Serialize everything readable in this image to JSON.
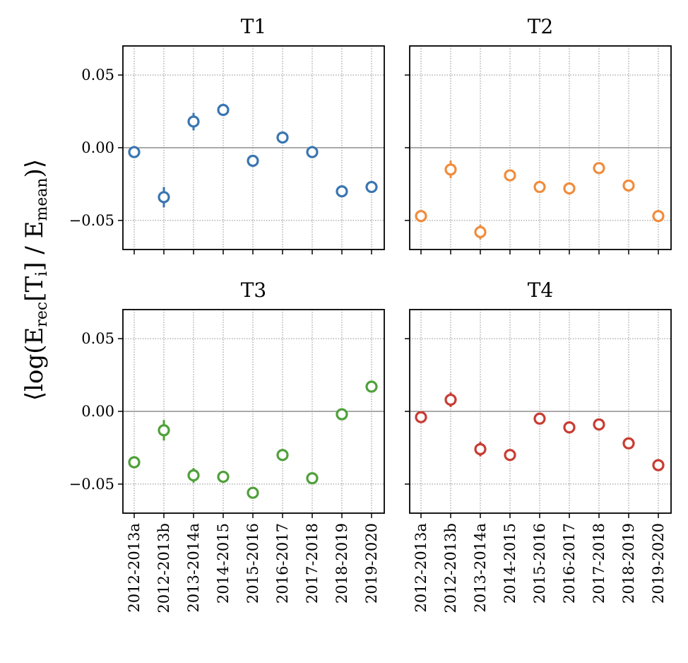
{
  "chart_data": {
    "type": "scatter",
    "ylabel": {
      "prefix": "⟨log(E",
      "sub1": "rec",
      "mid1": "[T",
      "sub2": "i",
      "mid2": "] / E",
      "sub3": "mean",
      "suffix": ")⟩"
    },
    "categories": [
      "2012-2013a",
      "2012-2013b",
      "2013-2014a",
      "2014-2015",
      "2015-2016",
      "2016-2017",
      "2017-2018",
      "2018-2019",
      "2019-2020"
    ],
    "ylim": [
      -0.07,
      0.07
    ],
    "yticks": [
      -0.05,
      0.0,
      0.05
    ],
    "ytick_labels": [
      "−0.05",
      "0.00",
      "0.05"
    ],
    "grid": true,
    "reference_line": 0.0,
    "panels": [
      {
        "title": "T1",
        "color": "#3a75b0",
        "values": [
          -0.003,
          -0.034,
          0.018,
          0.026,
          -0.009,
          0.007,
          -0.003,
          -0.03,
          -0.027
        ],
        "errors": [
          0.003,
          0.007,
          0.006,
          0.003,
          0.003,
          0.003,
          0.003,
          0.003,
          0.004
        ]
      },
      {
        "title": "T2",
        "color": "#f08c3c",
        "values": [
          -0.047,
          -0.015,
          -0.058,
          -0.019,
          -0.027,
          -0.028,
          -0.014,
          -0.026,
          -0.047
        ],
        "errors": [
          0.003,
          0.006,
          0.005,
          0.003,
          0.003,
          0.003,
          0.003,
          0.003,
          0.003
        ]
      },
      {
        "title": "T3",
        "color": "#4fa03a",
        "values": [
          -0.035,
          -0.013,
          -0.044,
          -0.045,
          -0.056,
          -0.03,
          -0.046,
          -0.002,
          0.017
        ],
        "errors": [
          0.003,
          0.007,
          0.005,
          0.003,
          0.003,
          0.003,
          0.003,
          0.003,
          0.003
        ]
      },
      {
        "title": "T4",
        "color": "#c83c32",
        "values": [
          -0.004,
          0.008,
          -0.026,
          -0.03,
          -0.005,
          -0.011,
          -0.009,
          -0.022,
          -0.037
        ],
        "errors": [
          0.003,
          0.005,
          0.005,
          0.003,
          0.003,
          0.003,
          0.003,
          0.003,
          0.003
        ]
      }
    ]
  }
}
